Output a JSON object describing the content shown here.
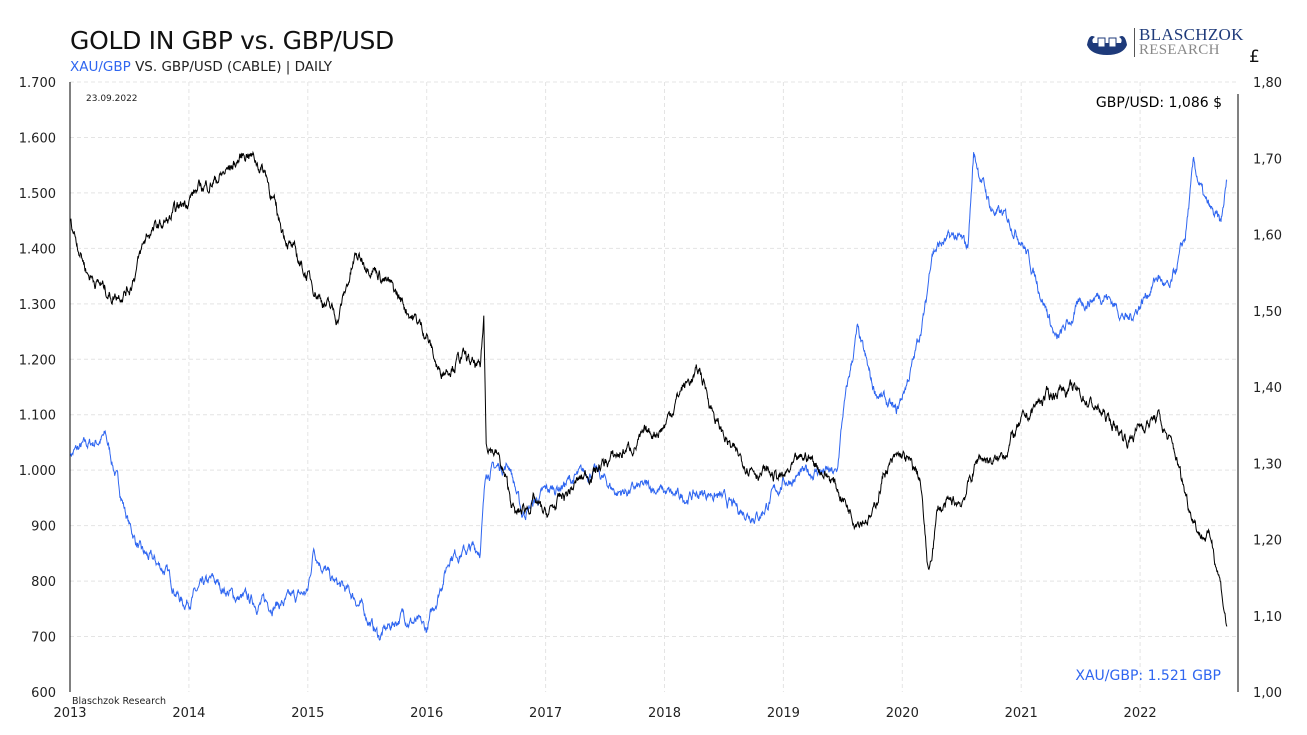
{
  "header": {
    "title": "GOLD IN GBP vs. GBP/USD",
    "subtitle_blue": "XAU/GBP",
    "subtitle_rest": " VS. GBP/USD (CABLE) | DAILY",
    "logo_line1": "BLASCHZOK",
    "logo_line2": "RESEARCH"
  },
  "chart_data": {
    "type": "line",
    "title": "GOLD IN GBP vs. GBP/USD",
    "date_label": "23.09.2022",
    "watermark": "Blaschzok Research",
    "right_axis_unit": "£",
    "x_ticks": [
      "2013",
      "2014",
      "2015",
      "2016",
      "2017",
      "2018",
      "2019",
      "2020",
      "2021",
      "2022"
    ],
    "xlim": [
      2013,
      2022.85
    ],
    "left_ticks": [
      "600",
      "700",
      "800",
      "900",
      "1.000",
      "1.100",
      "1.200",
      "1.300",
      "1.400",
      "1.500",
      "1.600",
      "1.700"
    ],
    "ylim_left": [
      600,
      1700
    ],
    "right_ticks": [
      "1,00",
      "1,10",
      "1,20",
      "1,30",
      "1,40",
      "1,50",
      "1,60",
      "1,70",
      "1,80"
    ],
    "ylim_right": [
      1.0,
      1.8
    ],
    "colors": {
      "xau_gbp": "#2f66f0",
      "gbp_usd": "#000000"
    },
    "annotations": {
      "gbp_usd": "GBP/USD: 1,086 $",
      "xau_gbp": "XAU/GBP: 1.521 GBP"
    },
    "series": [
      {
        "name": "XAU/GBP",
        "axis": "left",
        "x": [
          2013.0,
          2013.3,
          2013.5,
          2013.6,
          2013.8,
          2013.95,
          2014.2,
          2014.4,
          2014.6,
          2014.8,
          2015.0,
          2015.05,
          2015.2,
          2015.4,
          2015.6,
          2015.8,
          2016.0,
          2016.2,
          2016.45,
          2016.5,
          2016.7,
          2016.8,
          2017.0,
          2017.2,
          2017.4,
          2017.6,
          2017.9,
          2018.1,
          2018.4,
          2018.6,
          2018.8,
          2019.0,
          2019.3,
          2019.45,
          2019.5,
          2019.62,
          2019.75,
          2019.95,
          2020.1,
          2020.2,
          2020.25,
          2020.45,
          2020.55,
          2020.6,
          2020.75,
          2020.9,
          2021.0,
          2021.2,
          2021.3,
          2021.5,
          2021.7,
          2021.9,
          2022.0,
          2022.15,
          2022.25,
          2022.38,
          2022.45,
          2022.55,
          2022.68,
          2022.73
        ],
        "y": [
          1030,
          1060,
          900,
          850,
          820,
          760,
          800,
          770,
          760,
          760,
          780,
          860,
          800,
          770,
          700,
          740,
          710,
          850,
          860,
          1000,
          1010,
          920,
          960,
          980,
          1000,
          960,
          970,
          950,
          960,
          930,
          920,
          980,
          1000,
          990,
          1100,
          1250,
          1150,
          1100,
          1200,
          1300,
          1400,
          1420,
          1400,
          1570,
          1470,
          1450,
          1420,
          1300,
          1230,
          1300,
          1320,
          1270,
          1300,
          1350,
          1320,
          1420,
          1550,
          1480,
          1440,
          1521
        ]
      },
      {
        "name": "GBP/USD",
        "axis": "right",
        "x": [
          2013.0,
          2013.15,
          2013.35,
          2013.5,
          2013.65,
          2013.85,
          2014.0,
          2014.3,
          2014.5,
          2014.65,
          2014.75,
          2014.9,
          2015.1,
          2015.25,
          2015.4,
          2015.55,
          2015.7,
          2015.85,
          2016.0,
          2016.1,
          2016.3,
          2016.45,
          2016.48,
          2016.5,
          2016.6,
          2016.75,
          2016.9,
          2017.0,
          2017.3,
          2017.5,
          2017.7,
          2017.9,
          2018.0,
          2018.15,
          2018.3,
          2018.45,
          2018.6,
          2018.8,
          2019.0,
          2019.2,
          2019.4,
          2019.6,
          2019.75,
          2019.85,
          2020.0,
          2020.15,
          2020.22,
          2020.3,
          2020.5,
          2020.65,
          2020.8,
          2020.95,
          2021.15,
          2021.35,
          2021.5,
          2021.65,
          2021.9,
          2022.0,
          2022.15,
          2022.3,
          2022.4,
          2022.5,
          2022.6,
          2022.67,
          2022.73
        ],
        "y": [
          1.62,
          1.55,
          1.52,
          1.53,
          1.6,
          1.62,
          1.65,
          1.68,
          1.71,
          1.68,
          1.62,
          1.57,
          1.52,
          1.49,
          1.57,
          1.56,
          1.53,
          1.5,
          1.47,
          1.42,
          1.44,
          1.42,
          1.49,
          1.33,
          1.31,
          1.23,
          1.25,
          1.23,
          1.28,
          1.3,
          1.32,
          1.34,
          1.35,
          1.4,
          1.42,
          1.35,
          1.31,
          1.29,
          1.28,
          1.31,
          1.28,
          1.23,
          1.23,
          1.29,
          1.31,
          1.28,
          1.15,
          1.24,
          1.25,
          1.31,
          1.3,
          1.34,
          1.38,
          1.4,
          1.39,
          1.37,
          1.33,
          1.35,
          1.36,
          1.31,
          1.25,
          1.21,
          1.2,
          1.15,
          1.086
        ]
      }
    ]
  }
}
